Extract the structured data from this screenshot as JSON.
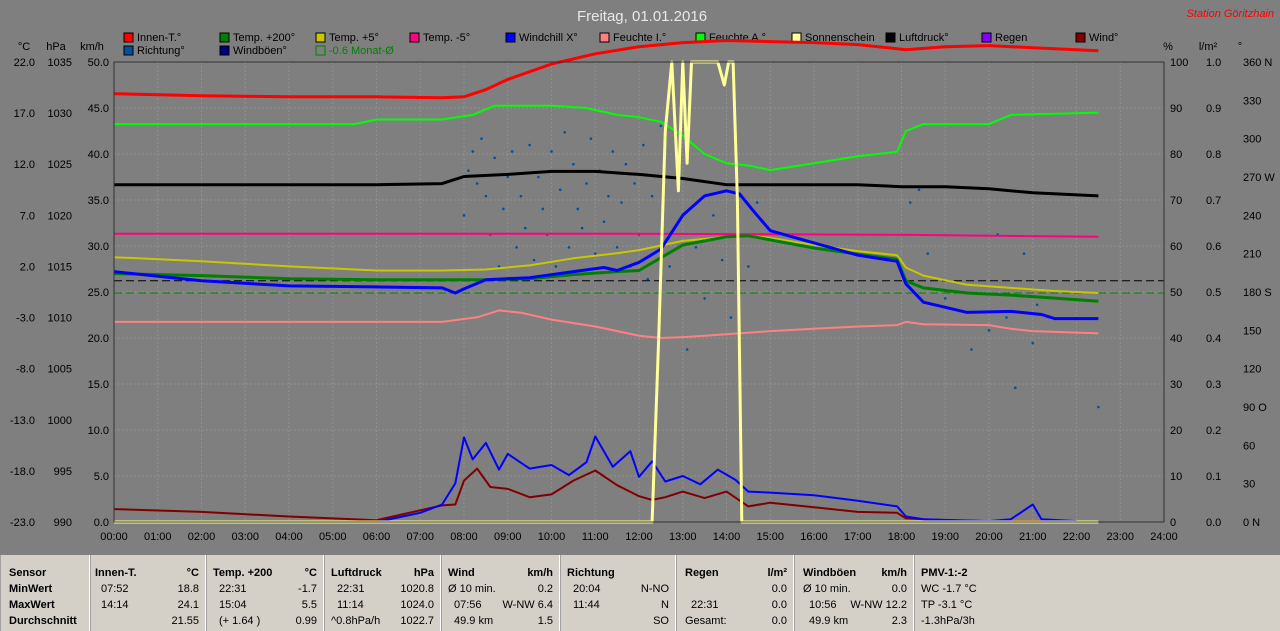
{
  "chart_data": {
    "type": "line",
    "title": "Freitag, 01.01.2016",
    "station": "Station Göritzhain",
    "colors": {
      "background": "#7f7f7f",
      "grid": "#909090"
    },
    "unit_labels": [
      "°C",
      "hPa",
      "km/h",
      "%",
      "l/m²",
      "°"
    ],
    "axes": {
      "temp_c": {
        "min": -23.0,
        "max": 22.0,
        "ticks": [
          "22.0",
          "17.0",
          "12.0",
          "7.0",
          "2.0",
          "-3.0",
          "-8.0",
          "-13.0",
          "-18.0",
          "-23.0"
        ]
      },
      "pressure_hpa": {
        "min": 990,
        "max": 1035,
        "ticks": [
          "1035",
          "1030",
          "1025",
          "1020",
          "1015",
          "1010",
          "1005",
          "1000",
          "995",
          "990"
        ]
      },
      "wind_kmh": {
        "min": 0,
        "max": 50,
        "ticks": [
          "50.0",
          "45.0",
          "40.0",
          "35.0",
          "30.0",
          "25.0",
          "20.0",
          "15.0",
          "10.0",
          "5.0",
          "0.0"
        ]
      },
      "humidity_pct": {
        "min": 0,
        "max": 100,
        "ticks": [
          "100",
          "90",
          "80",
          "70",
          "60",
          "50",
          "40",
          "30",
          "20",
          "10",
          "0"
        ]
      },
      "rain_lm2": {
        "min": 0,
        "max": 1.0,
        "ticks": [
          "1.0",
          "0.9",
          "0.8",
          "0.7",
          "0.6",
          "0.5",
          "0.4",
          "0.3",
          "0.2",
          "0.1",
          "0.0"
        ]
      },
      "direction_deg": {
        "min": 0,
        "max": 360,
        "ticks": [
          "360 N",
          "330",
          "300",
          "270 W",
          "240",
          "210",
          "180 S",
          "150",
          "120",
          "90 O",
          "60",
          "30",
          "0 N"
        ]
      },
      "time_ticks": [
        "00:00",
        "01:00",
        "02:00",
        "03:00",
        "04:00",
        "05:00",
        "06:00",
        "07:00",
        "08:00",
        "09:00",
        "10:00",
        "11:00",
        "12:00",
        "13:00",
        "14:00",
        "15:00",
        "16:00",
        "17:00",
        "18:00",
        "19:00",
        "20:00",
        "21:00",
        "22:00",
        "23:00",
        "24:00"
      ]
    },
    "legend": [
      {
        "name": "Innen-T.°",
        "color": "#ff0000",
        "filled": true
      },
      {
        "name": "Temp. +200°",
        "color": "#008000",
        "filled": true
      },
      {
        "name": "Temp. +5°",
        "color": "#c8c800",
        "filled": true
      },
      {
        "name": "Temp. -5°",
        "color": "#ff0080",
        "filled": true
      },
      {
        "name": "Windchill X°",
        "color": "#0000ff",
        "filled": true
      },
      {
        "name": "Feuchte I.°",
        "color": "#ff8080",
        "filled": true
      },
      {
        "name": "Feuchte A.°",
        "color": "#00ff00",
        "filled": true
      },
      {
        "name": "Sonnenschein",
        "color": "#ffff99",
        "filled": true
      },
      {
        "name": "Luftdruck°",
        "color": "#000000",
        "filled": true
      },
      {
        "name": "Regen",
        "color": "#8000ff",
        "filled": true
      },
      {
        "name": "Wind°",
        "color": "#800000",
        "filled": true
      },
      {
        "name": "Richtung°",
        "color": "#0050a0",
        "filled": true
      },
      {
        "name": "Windböen°",
        "color": "#000080",
        "filled": true
      },
      {
        "name": "-0.6 Monat-Ø",
        "color": "#008000",
        "filled": false
      }
    ],
    "reference_lines": [
      {
        "name": "-0.6 Monat-Ø",
        "axis": "temp_c",
        "y": -0.6,
        "color": "#008000",
        "dash": true
      },
      {
        "name": "Temp. +200 Ø",
        "axis": "temp_c",
        "y": 0.6,
        "color": "#000000",
        "dash": true
      }
    ],
    "series": [
      {
        "name": "Innen-T.°",
        "axis": "temp_c",
        "color": "#ff0000",
        "width": 3,
        "x": [
          0,
          2,
          4,
          6,
          7.5,
          8,
          8.5,
          9,
          10,
          11,
          12,
          13,
          14,
          15,
          16,
          17,
          17.9,
          18.1,
          19,
          20,
          21,
          22.5
        ],
        "y": [
          18.9,
          18.7,
          18.6,
          18.6,
          18.5,
          18.6,
          19.3,
          20.3,
          21.8,
          22.8,
          23.5,
          23.9,
          24.1,
          24.0,
          23.9,
          23.7,
          23.3,
          23.2,
          23.5,
          23.6,
          23.4,
          23.1
        ]
      },
      {
        "name": "Feuchte A.°",
        "axis": "humidity_pct",
        "color": "#00ff00",
        "width": 2,
        "x": [
          0,
          2,
          4,
          5.5,
          6,
          7.5,
          8.2,
          8.7,
          9,
          10,
          10.8,
          11.5,
          12,
          12.5,
          13,
          13.5,
          14,
          14.5,
          15,
          16,
          17,
          17.9,
          18.1,
          18.5,
          20,
          20.5,
          22.5
        ],
        "y": [
          86.5,
          86.5,
          86.5,
          86.5,
          87.5,
          87.5,
          88.5,
          90.5,
          90.5,
          90.5,
          90,
          88.5,
          88,
          87,
          84,
          80,
          78,
          77.5,
          76.5,
          78,
          79.5,
          80.5,
          85,
          86.5,
          86.5,
          88.5,
          89
        ]
      },
      {
        "name": "Luftdruck°",
        "axis": "pressure_hpa",
        "color": "#000000",
        "width": 3,
        "x": [
          0,
          2,
          4,
          6,
          7.5,
          8,
          9,
          10,
          11,
          12,
          13,
          14,
          15,
          16,
          17,
          18,
          19,
          20,
          21,
          22.5
        ],
        "y": [
          1023.0,
          1023.0,
          1023.0,
          1023.0,
          1023.1,
          1023.8,
          1024.0,
          1024.3,
          1024.3,
          1024.0,
          1023.6,
          1023.0,
          1023.0,
          1023.0,
          1023.0,
          1022.8,
          1022.8,
          1022.6,
          1022.2,
          1021.9
        ]
      },
      {
        "name": "Temp. -5°",
        "axis": "temp_c",
        "color": "#ff0080",
        "width": 2,
        "x": [
          0,
          6,
          12,
          18,
          22.5
        ],
        "y": [
          5.2,
          5.2,
          5.2,
          5.1,
          4.9
        ]
      },
      {
        "name": "Temp. +5°",
        "axis": "temp_c",
        "color": "#c8c800",
        "width": 2,
        "x": [
          0,
          2,
          4,
          6,
          7.5,
          8.5,
          9.5,
          10.5,
          11.5,
          12,
          13,
          14,
          14.5,
          15,
          16,
          17,
          17.9,
          18.1,
          18.5,
          19.5,
          20.5,
          21.5,
          22.5
        ],
        "y": [
          2.9,
          2.5,
          2.0,
          1.6,
          1.6,
          1.7,
          2.1,
          2.8,
          3.3,
          3.6,
          4.5,
          4.9,
          5.0,
          4.8,
          4.1,
          3.5,
          3.1,
          1.9,
          1.1,
          0.2,
          -0.1,
          -0.4,
          -0.6
        ]
      },
      {
        "name": "Temp. +200°",
        "axis": "temp_c",
        "color": "#008000",
        "width": 3,
        "x": [
          0,
          2,
          4,
          6,
          7.5,
          8.5,
          9.5,
          10.5,
          11.5,
          12,
          13,
          14,
          14.5,
          15,
          16,
          17,
          17.9,
          18.1,
          18.5,
          19.5,
          20.5,
          21.5,
          22.5
        ],
        "y": [
          1.3,
          1.1,
          0.8,
          0.7,
          0.7,
          0.7,
          0.8,
          1.2,
          1.5,
          1.6,
          4.1,
          4.9,
          5.0,
          4.6,
          3.8,
          3.2,
          2.7,
          0.6,
          -0.1,
          -0.6,
          -0.8,
          -1.1,
          -1.4
        ]
      },
      {
        "name": "Windchill X°",
        "axis": "temp_c",
        "color": "#0000ff",
        "width": 3,
        "x": [
          0,
          2,
          4,
          6,
          7.5,
          7.8,
          8.0,
          8.5,
          9.5,
          10.5,
          11.2,
          11.5,
          12,
          12.5,
          13,
          13.5,
          14,
          14.3,
          14.6,
          15,
          16,
          17,
          17.9,
          18.1,
          18.5,
          19.5,
          20.5,
          21.2,
          21.5,
          22.5
        ],
        "y": [
          1.5,
          0.6,
          0.1,
          0.0,
          -0.1,
          -0.6,
          -0.2,
          0.7,
          0.9,
          1.5,
          1.9,
          1.6,
          2.4,
          3.7,
          7.0,
          8.9,
          9.4,
          9.1,
          7.5,
          5.5,
          4.3,
          3.1,
          2.5,
          0.3,
          -1.5,
          -2.5,
          -2.4,
          -2.7,
          -3.1,
          -3.1
        ]
      },
      {
        "name": "Feuchte I.°",
        "axis": "humidity_pct",
        "color": "#ff8080",
        "width": 2,
        "x": [
          0,
          2,
          4,
          6,
          7.5,
          8.3,
          8.8,
          9.3,
          10,
          11,
          12,
          12.5,
          13,
          13.5,
          14,
          15,
          16,
          17,
          17.9,
          18.1,
          18.5,
          20,
          20.5,
          21,
          22.5
        ],
        "y": [
          43.5,
          43.5,
          43.5,
          43.5,
          43.5,
          44.5,
          46.0,
          45.5,
          44.0,
          42.5,
          40.5,
          40.0,
          40.2,
          40.5,
          40.8,
          41.5,
          42.0,
          42.5,
          42.8,
          43.5,
          43.0,
          42.8,
          42.0,
          41.5,
          41.0
        ]
      },
      {
        "name": "Wind°",
        "axis": "wind_kmh",
        "color": "#800000",
        "width": 2,
        "x": [
          0,
          2,
          4,
          6,
          7.5,
          7.8,
          8.0,
          8.3,
          8.6,
          9,
          9.5,
          10,
          10.5,
          11,
          11.5,
          12,
          12.3,
          12.6,
          13,
          13.5,
          14,
          14.5,
          15,
          16,
          17,
          17.9,
          18.1,
          18.5,
          19,
          20,
          21,
          22
        ],
        "y": [
          1.4,
          1.1,
          0.6,
          0.2,
          1.8,
          1.9,
          4.5,
          5.8,
          3.8,
          3.6,
          2.7,
          3.0,
          4.5,
          5.6,
          4.0,
          2.8,
          2.4,
          2.7,
          3.3,
          2.6,
          3.3,
          1.7,
          2.1,
          1.6,
          1.1,
          1.0,
          0.4,
          0.3,
          0.2,
          0.1,
          0.1,
          0.1
        ]
      },
      {
        "name": "Windböen°",
        "axis": "wind_kmh",
        "color": "#0000ff",
        "width": 2,
        "x": [
          6,
          7,
          7.5,
          7.8,
          8.0,
          8.2,
          8.5,
          8.8,
          9,
          9.5,
          10,
          10.4,
          10.8,
          11,
          11.4,
          11.8,
          12,
          12.3,
          12.6,
          13,
          13.4,
          13.8,
          14.2,
          14.5,
          15,
          16,
          17,
          17.9,
          18.1,
          18.5,
          20,
          20.5,
          21,
          21.2,
          22
        ],
        "y": [
          0.0,
          1.0,
          1.9,
          4.2,
          9.2,
          6.8,
          8.6,
          5.7,
          7.4,
          5.8,
          6.2,
          5.1,
          6.5,
          9.3,
          6.0,
          7.7,
          4.9,
          6.6,
          4.4,
          5.0,
          4.1,
          5.7,
          4.6,
          3.3,
          3.2,
          2.9,
          2.3,
          1.7,
          0.6,
          0.3,
          0.1,
          0.3,
          1.9,
          0.3,
          0.1
        ]
      },
      {
        "name": "Sonnenschein",
        "axis": "humidity_pct",
        "color": "#ffff99",
        "width": 3,
        "x": [
          0,
          12.3,
          12.45,
          12.6,
          12.75,
          12.9,
          13.0,
          13.1,
          13.2,
          13.35,
          13.6,
          13.8,
          13.95,
          14.05,
          14.15,
          14.25,
          14.35,
          14.4,
          22.5
        ],
        "y": [
          0,
          0,
          40,
          85,
          100,
          72,
          100,
          78,
          100,
          100,
          100,
          100,
          95,
          100,
          100,
          70,
          0,
          0,
          0
        ]
      }
    ],
    "direction_scatter": {
      "name": "Richtung°",
      "axis": "direction_deg",
      "color": "#0050a0",
      "x": [
        8.0,
        8.1,
        8.2,
        8.3,
        8.4,
        8.5,
        8.6,
        8.7,
        8.8,
        8.9,
        9.0,
        9.1,
        9.2,
        9.3,
        9.4,
        9.5,
        9.6,
        9.7,
        9.8,
        9.9,
        10.0,
        10.1,
        10.2,
        10.3,
        10.4,
        10.5,
        10.6,
        10.7,
        10.8,
        10.9,
        11.0,
        11.1,
        11.2,
        11.3,
        11.4,
        11.5,
        11.6,
        11.7,
        11.8,
        11.9,
        12.0,
        12.1,
        12.2,
        12.3,
        12.5,
        12.7,
        12.9,
        13.1,
        13.3,
        13.5,
        13.7,
        13.9,
        14.1,
        14.3,
        14.5,
        14.7,
        18.2,
        18.4,
        18.6,
        19.0,
        19.6,
        20.0,
        20.2,
        20.4,
        20.6,
        20.8,
        21.0,
        21.1,
        22.5
      ],
      "y": [
        240,
        275,
        290,
        265,
        300,
        255,
        225,
        285,
        200,
        245,
        270,
        290,
        215,
        255,
        230,
        295,
        205,
        270,
        245,
        225,
        290,
        200,
        260,
        305,
        215,
        280,
        245,
        230,
        265,
        300,
        210,
        275,
        235,
        255,
        290,
        215,
        250,
        280,
        200,
        265,
        225,
        295,
        190,
        255,
        310,
        200,
        280,
        135,
        215,
        175,
        240,
        205,
        160,
        255,
        200,
        250,
        250,
        260,
        210,
        175,
        135,
        150,
        225,
        160,
        105,
        210,
        140,
        170,
        90
      ]
    }
  },
  "stats": {
    "sensor": {
      "header": "Sensor",
      "rows": [
        "MinWert",
        "MaxWert",
        "Durchschnitt"
      ]
    },
    "innen": {
      "header": "Innen-T.",
      "unit": "°C",
      "rows": [
        [
          "07:52",
          "18.8"
        ],
        [
          "14:14",
          "24.1"
        ],
        [
          "",
          "21.55"
        ]
      ]
    },
    "temp200": {
      "header": "Temp. +200",
      "unit": "°C",
      "rows": [
        [
          "22:31",
          "-1.7"
        ],
        [
          "15:04",
          "5.5"
        ],
        [
          "(+ 1.64 )",
          "0.99"
        ]
      ]
    },
    "luftdruck": {
      "header": "Luftdruck",
      "unit": "hPa",
      "rows": [
        [
          "22:31",
          "1020.8"
        ],
        [
          "11:14",
          "1024.0"
        ],
        [
          "^0.8hPa/h",
          "1022.7"
        ]
      ]
    },
    "wind": {
      "header": "Wind",
      "unit": "km/h",
      "rows": [
        [
          "Ø 10 min.",
          "0.2"
        ],
        [
          "07:56",
          "W-NW 6.4"
        ],
        [
          "49.9 km",
          "1.5"
        ]
      ]
    },
    "richtung": {
      "header": "Richtung",
      "unit": "",
      "rows": [
        [
          "20:04",
          "N-NO"
        ],
        [
          "11:44",
          "N"
        ],
        [
          "",
          "SO"
        ]
      ]
    },
    "regen": {
      "header": "Regen",
      "unit": "l/m²",
      "rows": [
        [
          "",
          ""
        ],
        [
          "22:31",
          "0.0"
        ],
        [
          "Gesamt:",
          "0.0"
        ]
      ],
      "row0_value": "0.0"
    },
    "windboeen": {
      "header": "Windböen",
      "unit": "km/h",
      "rows": [
        [
          "Ø 10 min.",
          "0.0"
        ],
        [
          "10:56",
          "W-NW 12.2"
        ],
        [
          "49.9 km",
          "2.3"
        ]
      ]
    },
    "pmv": {
      "header": "PMV-1:-2",
      "rows": [
        "WC -1.7 °C",
        "TP -3.1 °C",
        "-1.3hPa/3h"
      ]
    }
  }
}
